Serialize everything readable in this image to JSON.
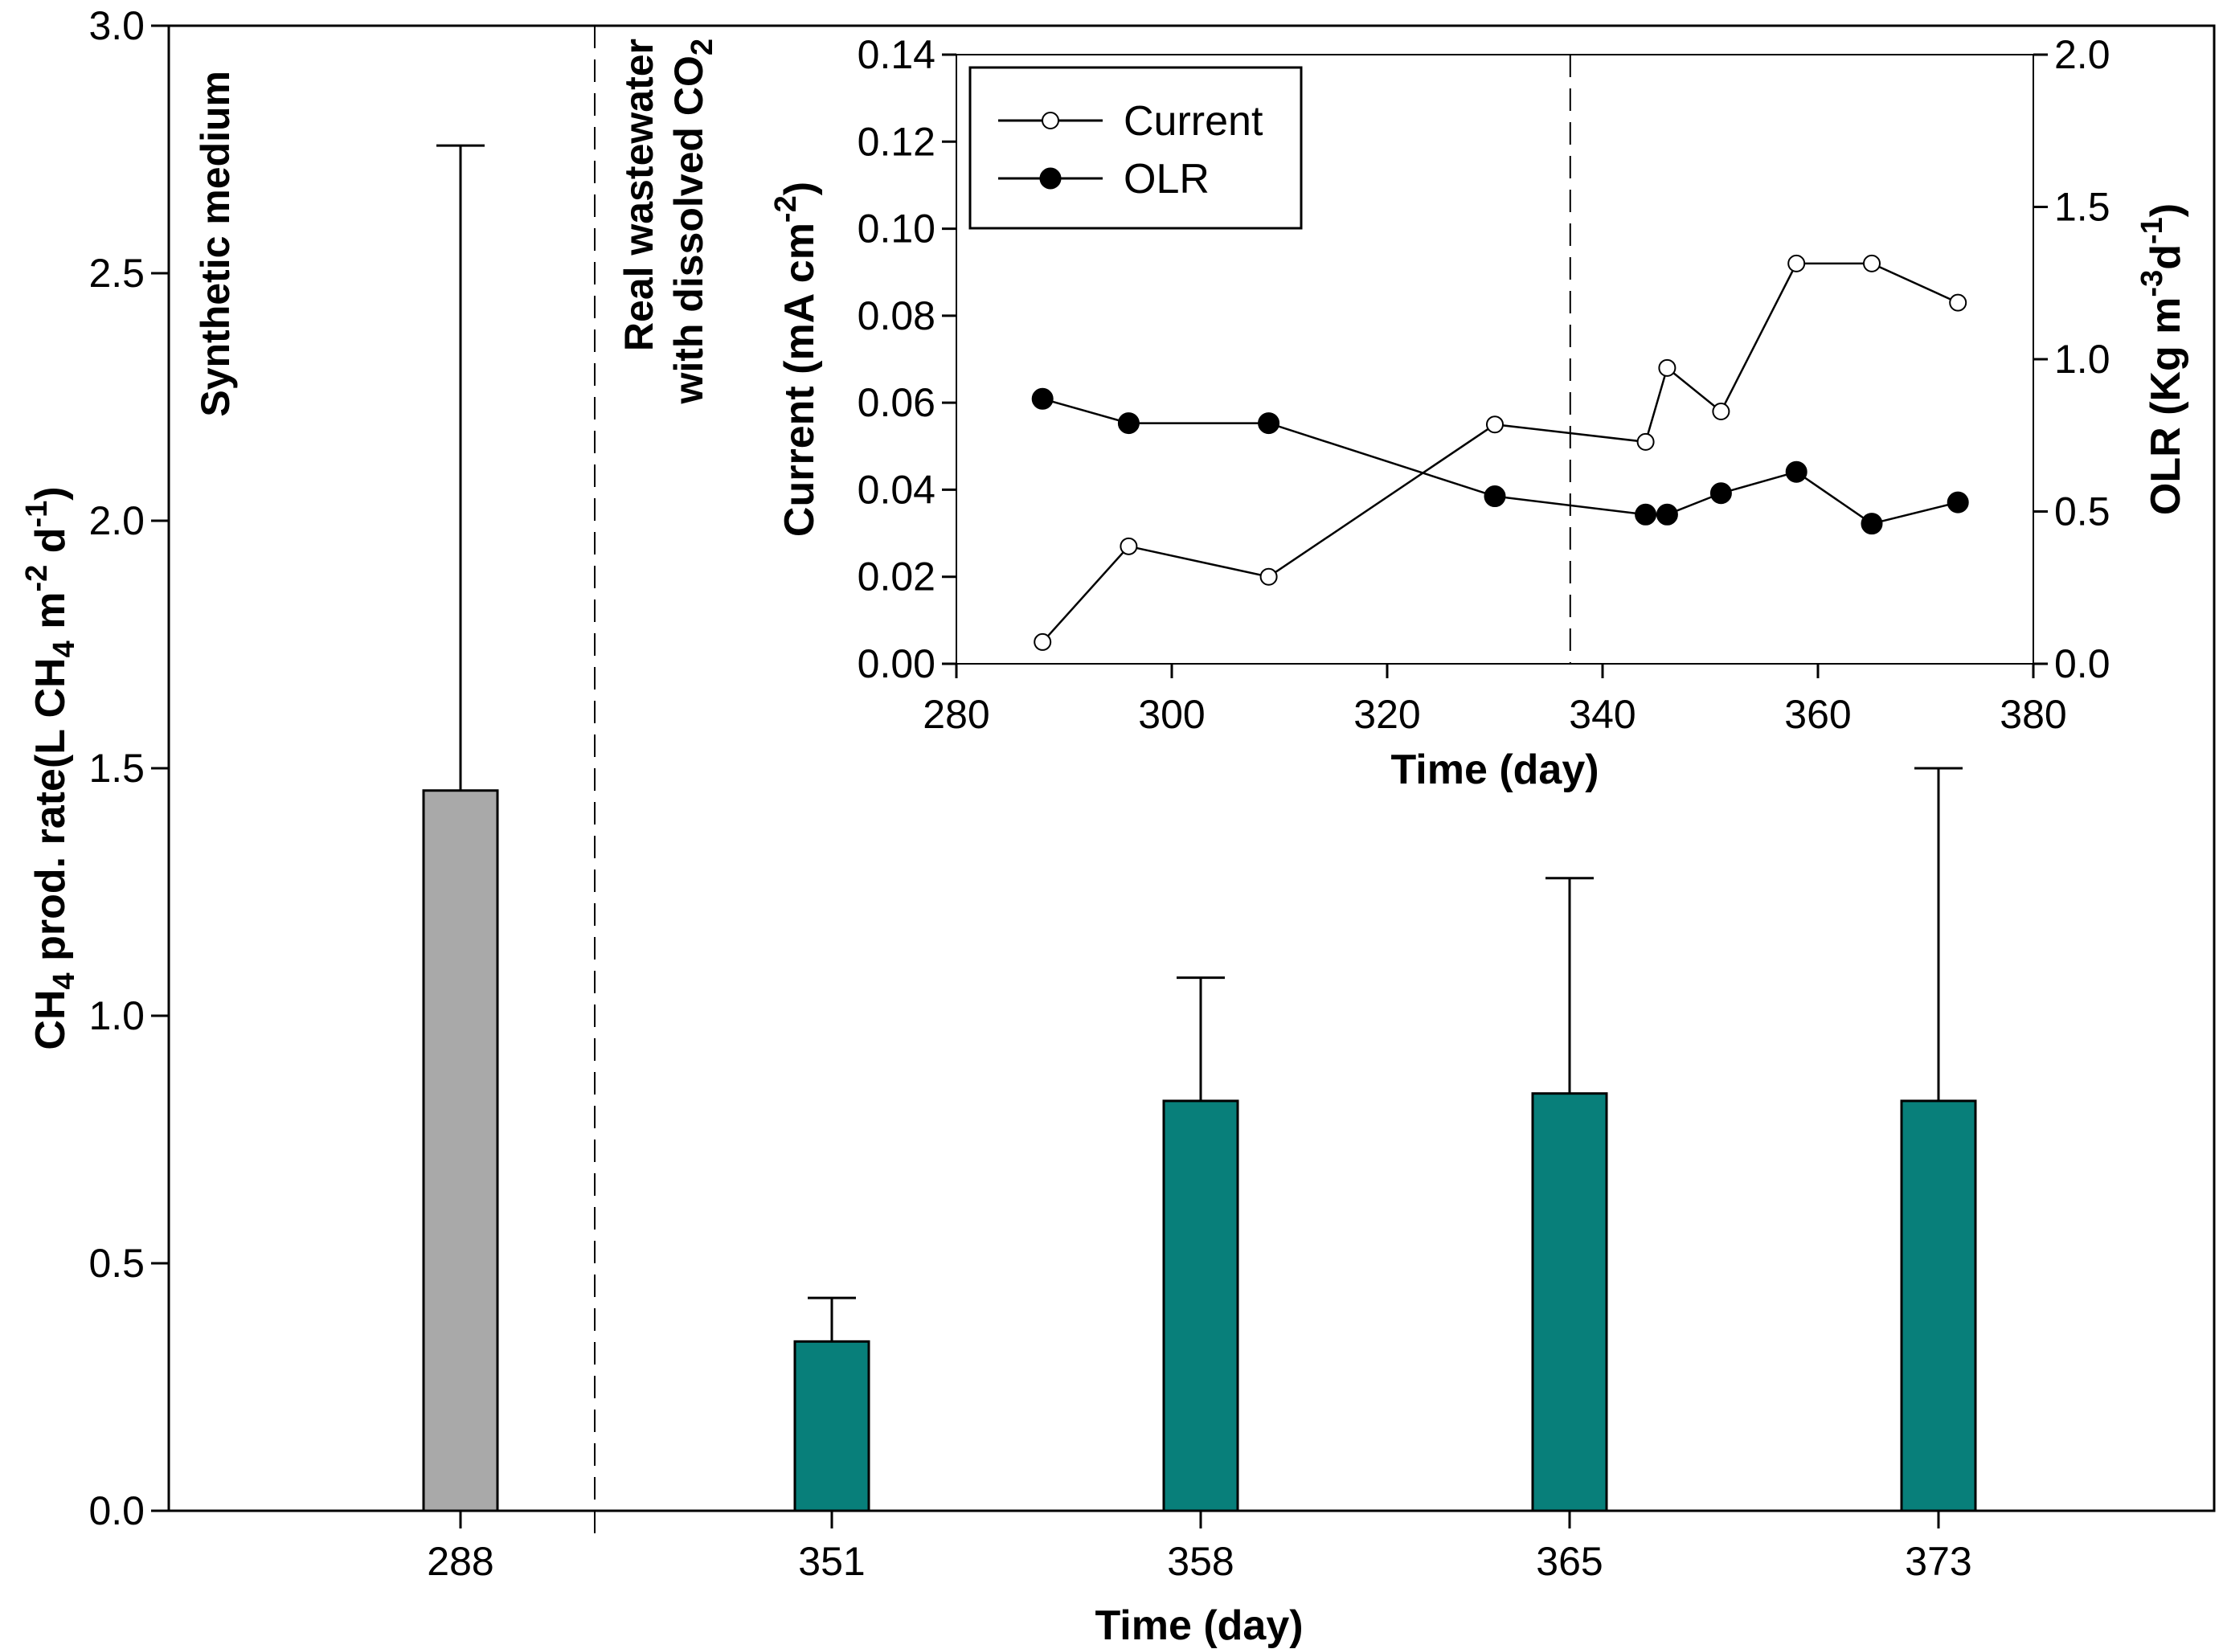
{
  "chart_data": [
    {
      "type": "bar",
      "categories": [
        "288",
        "351",
        "358",
        "365",
        "373"
      ],
      "values": [
        1.455,
        0.342,
        0.828,
        0.843,
        0.828
      ],
      "error_upper": [
        2.758,
        0.43,
        1.077,
        1.278,
        1.5
      ],
      "bar_colors": [
        "#a9a9a9",
        "#087f7a",
        "#087f7a",
        "#087f7a",
        "#087f7a"
      ],
      "xlabel": "Time (day)",
      "ylabel": {
        "pre": "CH",
        "sub1": "4",
        "mid": " prod. rate(L CH",
        "sub2": "4",
        "mid2": " m",
        "sup1": "-2",
        "mid3": " d",
        "sup2": "-1",
        "post": ")"
      },
      "ylim": [
        0,
        3.0
      ],
      "yticks": [
        "0.0",
        "0.5",
        "1.0",
        "1.5",
        "2.0",
        "2.5",
        "3.0"
      ],
      "annotations": {
        "left": "Synthetic medium",
        "right_line1": "Real wastewater",
        "right_line2_pre": "with dissolved CO",
        "right_line2_sub": "2"
      }
    },
    {
      "type": "line",
      "x_current": [
        288,
        296,
        309,
        330,
        344,
        346,
        351,
        358,
        365,
        373
      ],
      "current": [
        0.005,
        0.027,
        0.02,
        0.055,
        0.051,
        0.068,
        0.058,
        0.092,
        0.092,
        0.083
      ],
      "x_olr": [
        288,
        296,
        309,
        330,
        344,
        346,
        351,
        358,
        365,
        373
      ],
      "olr": [
        0.87,
        0.79,
        0.79,
        0.55,
        0.49,
        0.49,
        0.56,
        0.63,
        0.46,
        0.53
      ],
      "xlabel": "Time (day)",
      "ylabel_left": {
        "pre": "Current (mA cm",
        "sup": "-2",
        "post": ")"
      },
      "ylabel_right": {
        "pre": "OLR (Kg m",
        "sup1": "-3",
        "mid": "d",
        "sup2": "-1",
        "post": ")"
      },
      "xlim": [
        280,
        380
      ],
      "ylim_left": [
        0,
        0.14
      ],
      "ylim_right": [
        0,
        2.0
      ],
      "xticks": [
        "280",
        "300",
        "320",
        "340",
        "360",
        "380"
      ],
      "yticks_left": [
        "0.00",
        "0.02",
        "0.04",
        "0.06",
        "0.08",
        "0.10",
        "0.12",
        "0.14"
      ],
      "yticks_right": [
        "0.0",
        "0.5",
        "1.0",
        "1.5",
        "2.0"
      ],
      "divider_x": 337,
      "legend": [
        {
          "name": "Current",
          "marker": "open-circle"
        },
        {
          "name": "OLR",
          "marker": "filled-circle"
        }
      ]
    }
  ]
}
